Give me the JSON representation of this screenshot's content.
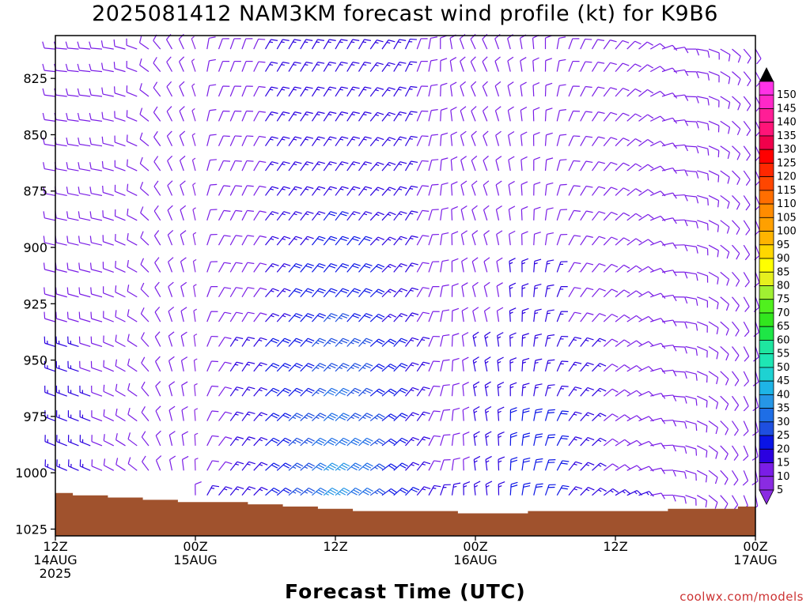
{
  "chart_data": {
    "type": "wind-barb time-height section",
    "title": "2025081412 NAM3KM forecast wind profile (kt) for K9B6",
    "xlabel": "Forecast Time (UTC)",
    "ylabel": "",
    "credit": "coolwx.com/models",
    "x_tick_labels": [
      {
        "hours": 0,
        "lines": [
          "12Z",
          "14AUG",
          "2025"
        ]
      },
      {
        "hours": 12,
        "lines": [
          "00Z",
          "15AUG"
        ]
      },
      {
        "hours": 24,
        "lines": [
          "12Z"
        ]
      },
      {
        "hours": 36,
        "lines": [
          "00Z",
          "16AUG"
        ]
      },
      {
        "hours": 48,
        "lines": [
          "12Z"
        ]
      },
      {
        "hours": 60,
        "lines": [
          "00Z",
          "17AUG"
        ]
      }
    ],
    "xlim_hours": [
      0,
      60
    ],
    "y_ticks": [
      825,
      850,
      875,
      900,
      925,
      950,
      975,
      1000,
      1025
    ],
    "ylim_hpa": [
      1028,
      806
    ],
    "colorbar": {
      "labels": [
        5,
        10,
        15,
        20,
        25,
        30,
        35,
        40,
        45,
        50,
        55,
        60,
        65,
        70,
        75,
        80,
        85,
        90,
        95,
        100,
        105,
        110,
        115,
        120,
        125,
        130,
        135,
        140,
        145,
        150
      ],
      "colors": [
        "#8a2be2",
        "#7a1de6",
        "#2b00e0",
        "#0a14e6",
        "#1e4fe0",
        "#1e6ee6",
        "#2696e6",
        "#1eb4e6",
        "#1ed2d2",
        "#1ee6b4",
        "#1ee6a0",
        "#1ee646",
        "#32e61e",
        "#50f01e",
        "#a0f032",
        "#e6f01e",
        "#ffff00",
        "#ffd700",
        "#ffb400",
        "#ffa000",
        "#ff8c00",
        "#ff6e00",
        "#ff4600",
        "#ff2800",
        "#ff0000",
        "#f0004b",
        "#ff1478",
        "#ff1e96",
        "#ff28c8",
        "#ff32e6"
      ]
    },
    "terrain_color": "#a0522d",
    "surface_pressure": [
      {
        "h": 0,
        "p": 1009
      },
      {
        "h": 3,
        "p": 1010
      },
      {
        "h": 6,
        "p": 1011
      },
      {
        "h": 9,
        "p": 1012
      },
      {
        "h": 12,
        "p": 1013
      },
      {
        "h": 15,
        "p": 1013
      },
      {
        "h": 18,
        "p": 1014
      },
      {
        "h": 21,
        "p": 1015
      },
      {
        "h": 24,
        "p": 1016
      },
      {
        "h": 27,
        "p": 1017
      },
      {
        "h": 30,
        "p": 1017
      },
      {
        "h": 33,
        "p": 1017
      },
      {
        "h": 36,
        "p": 1018
      },
      {
        "h": 39,
        "p": 1018
      },
      {
        "h": 42,
        "p": 1017
      },
      {
        "h": 45,
        "p": 1017
      },
      {
        "h": 48,
        "p": 1017
      },
      {
        "h": 51,
        "p": 1017
      },
      {
        "h": 54,
        "p": 1016
      },
      {
        "h": 57,
        "p": 1016
      },
      {
        "h": 60,
        "p": 1015
      }
    ],
    "wind_columns": [
      {
        "h": 0,
        "dir": 285,
        "spd": 10,
        "spd_low": 20
      },
      {
        "h": 1,
        "dir": 285,
        "spd": 10,
        "spd_low": 20
      },
      {
        "h": 2,
        "dir": 285,
        "spd": 10,
        "spd_low": 20
      },
      {
        "h": 3,
        "dir": 285,
        "spd": 10,
        "spd_low": 18
      },
      {
        "h": 4,
        "dir": 285,
        "spd": 10,
        "spd_low": 15
      },
      {
        "h": 5,
        "dir": 290,
        "spd": 10,
        "spd_low": 12
      },
      {
        "h": 6,
        "dir": 295,
        "spd": 10,
        "spd_low": 10
      },
      {
        "h": 7,
        "dir": 300,
        "spd": 10,
        "spd_low": 10
      },
      {
        "h": 8,
        "dir": 315,
        "spd": 10,
        "spd_low": 10
      },
      {
        "h": 9,
        "dir": 330,
        "spd": 10,
        "spd_low": 10
      },
      {
        "h": 10,
        "dir": 340,
        "spd": 10,
        "spd_low": 10
      },
      {
        "h": 11,
        "dir": 345,
        "spd": 10,
        "spd_low": 10
      },
      {
        "h": 12,
        "dir": 350,
        "spd": 5,
        "spd_low": 10
      },
      {
        "h": 13,
        "dir": 20,
        "spd": 10,
        "spd_low": 15
      },
      {
        "h": 14,
        "dir": 30,
        "spd": 10,
        "spd_low": 15
      },
      {
        "h": 15,
        "dir": 30,
        "spd": 10,
        "spd_low": 20
      },
      {
        "h": 16,
        "dir": 30,
        "spd": 10,
        "spd_low": 20
      },
      {
        "h": 17,
        "dir": 35,
        "spd": 10,
        "spd_low": 20
      },
      {
        "h": 18,
        "dir": 40,
        "spd": 15,
        "spd_low": 25
      },
      {
        "h": 19,
        "dir": 40,
        "spd": 15,
        "spd_low": 25
      },
      {
        "h": 20,
        "dir": 40,
        "spd": 15,
        "spd_low": 30
      },
      {
        "h": 21,
        "dir": 40,
        "spd": 15,
        "spd_low": 30
      },
      {
        "h": 22,
        "dir": 40,
        "spd": 15,
        "spd_low": 35
      },
      {
        "h": 23,
        "dir": 40,
        "spd": 15,
        "spd_low": 40
      },
      {
        "h": 24,
        "dir": 40,
        "spd": 15,
        "spd_low": 40
      },
      {
        "h": 25,
        "dir": 40,
        "spd": 15,
        "spd_low": 35
      },
      {
        "h": 26,
        "dir": 40,
        "spd": 15,
        "spd_low": 35
      },
      {
        "h": 27,
        "dir": 45,
        "spd": 15,
        "spd_low": 30
      },
      {
        "h": 28,
        "dir": 45,
        "spd": 15,
        "spd_low": 25
      },
      {
        "h": 29,
        "dir": 40,
        "spd": 15,
        "spd_low": 25
      },
      {
        "h": 30,
        "dir": 35,
        "spd": 15,
        "spd_low": 20
      },
      {
        "h": 31,
        "dir": 30,
        "spd": 10,
        "spd_low": 20
      },
      {
        "h": 32,
        "dir": 20,
        "spd": 10,
        "spd_low": 15
      },
      {
        "h": 33,
        "dir": 10,
        "spd": 10,
        "spd_low": 15
      },
      {
        "h": 34,
        "dir": 0,
        "spd": 10,
        "spd_low": 15
      },
      {
        "h": 35,
        "dir": 350,
        "spd": 10,
        "spd_low": 15
      },
      {
        "h": 36,
        "dir": 345,
        "spd": 10,
        "spd_low": 20
      },
      {
        "h": 37,
        "dir": 345,
        "spd": 10,
        "spd_low": 20
      },
      {
        "h": 38,
        "dir": 350,
        "spd": 10,
        "spd_low": 20
      },
      {
        "h": 39,
        "dir": 355,
        "spd": 10,
        "spd_low": 25
      },
      {
        "h": 40,
        "dir": 0,
        "spd": 10,
        "spd_low": 25
      },
      {
        "h": 41,
        "dir": 5,
        "spd": 10,
        "spd_low": 25
      },
      {
        "h": 42,
        "dir": 10,
        "spd": 10,
        "spd_low": 25
      },
      {
        "h": 43,
        "dir": 20,
        "spd": 10,
        "spd_low": 25
      },
      {
        "h": 44,
        "dir": 30,
        "spd": 10,
        "spd_low": 20
      },
      {
        "h": 45,
        "dir": 35,
        "spd": 10,
        "spd_low": 20
      },
      {
        "h": 46,
        "dir": 40,
        "spd": 10,
        "spd_low": 20
      },
      {
        "h": 47,
        "dir": 45,
        "spd": 10,
        "spd_low": 15
      },
      {
        "h": 48,
        "dir": 50,
        "spd": 10,
        "spd_low": 15
      },
      {
        "h": 49,
        "dir": 55,
        "spd": 10,
        "spd_low": 15
      },
      {
        "h": 50,
        "dir": 60,
        "spd": 10,
        "spd_low": 15
      },
      {
        "h": 51,
        "dir": 70,
        "spd": 10,
        "spd_low": 10
      },
      {
        "h": 52,
        "dir": 80,
        "spd": 10,
        "spd_low": 10
      },
      {
        "h": 53,
        "dir": 90,
        "spd": 10,
        "spd_low": 10
      },
      {
        "h": 54,
        "dir": 100,
        "spd": 10,
        "spd_low": 10
      },
      {
        "h": 55,
        "dir": 110,
        "spd": 10,
        "spd_low": 10
      },
      {
        "h": 56,
        "dir": 120,
        "spd": 10,
        "spd_low": 10
      },
      {
        "h": 57,
        "dir": 130,
        "spd": 10,
        "spd_low": 10
      },
      {
        "h": 58,
        "dir": 140,
        "spd": 10,
        "spd_low": 10
      },
      {
        "h": 59,
        "dir": 150,
        "spd": 10,
        "spd_low": 10
      },
      {
        "h": 60,
        "dir": 160,
        "spd": 10,
        "spd_low": 10
      }
    ],
    "wind_levels_hpa": [
      812,
      822,
      833,
      844,
      855,
      866,
      877,
      888,
      899,
      911,
      922,
      933,
      944,
      955,
      966,
      977,
      988,
      999,
      1010,
      1018
    ]
  }
}
